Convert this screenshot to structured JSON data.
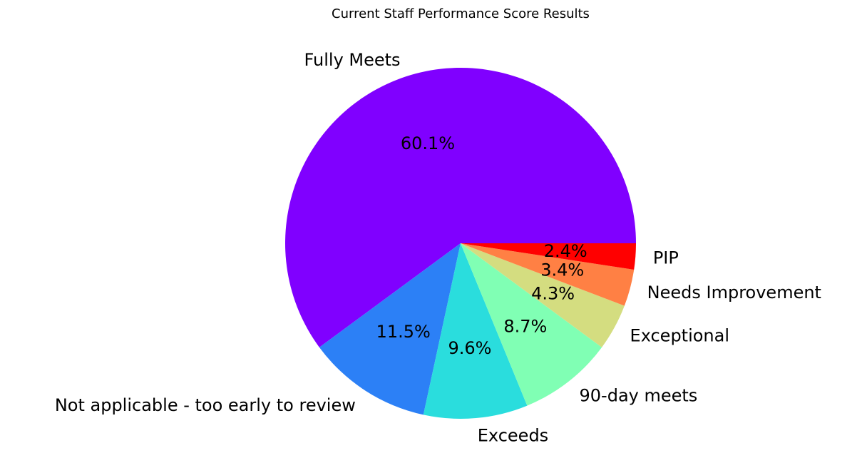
{
  "chart_data": {
    "type": "pie",
    "title": "Current Staff Performance Score Results",
    "slices": [
      {
        "label": "Fully Meets",
        "pct_label": "60.1%",
        "value": 60.1,
        "color": "#8000ff"
      },
      {
        "label": "Not applicable - too early to review",
        "pct_label": "11.5%",
        "value": 11.5,
        "color": "#2c80f6"
      },
      {
        "label": "Exceeds",
        "pct_label": "9.6%",
        "value": 9.6,
        "color": "#2adddd"
      },
      {
        "label": "90-day meets",
        "pct_label": "8.7%",
        "value": 8.7,
        "color": "#80ffb4"
      },
      {
        "label": "Exceptional",
        "pct_label": "4.3%",
        "value": 4.3,
        "color": "#d4dd80"
      },
      {
        "label": "Needs Improvement",
        "pct_label": "3.4%",
        "value": 3.4,
        "color": "#ff8044"
      },
      {
        "label": "PIP",
        "pct_label": "2.4%",
        "value": 2.4,
        "color": "#ff0000"
      }
    ],
    "start_angle": 0,
    "direction": "counterclockwise",
    "legend": "none"
  }
}
